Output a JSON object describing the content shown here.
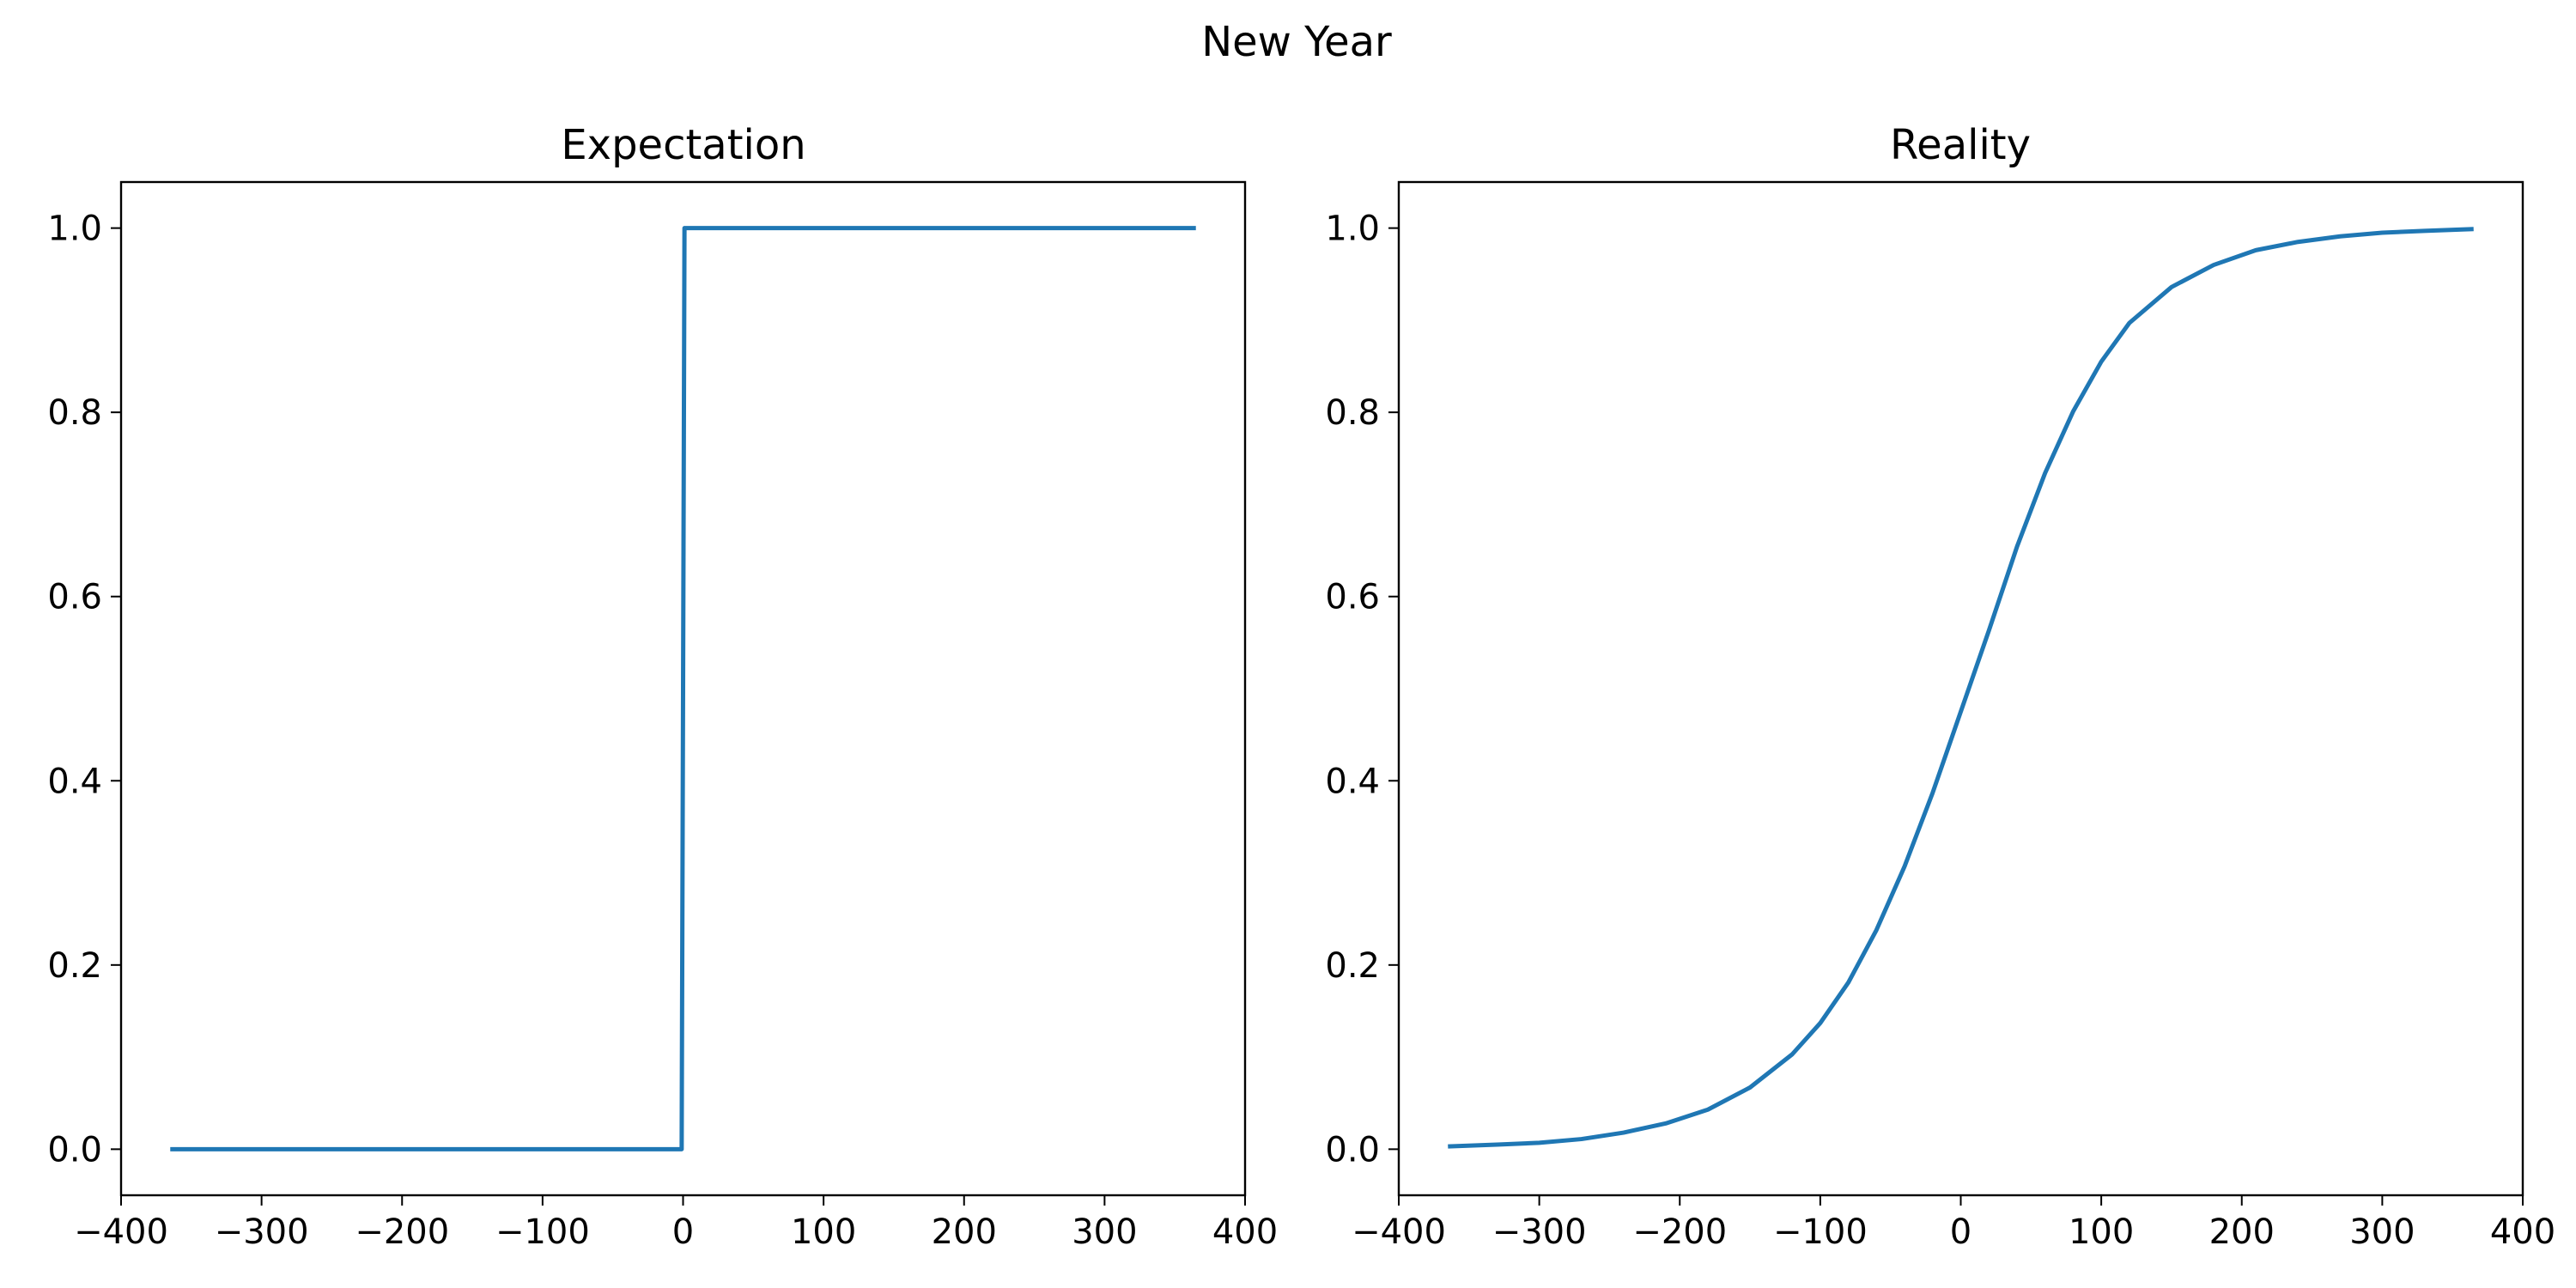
{
  "figure": {
    "title": "New Year"
  },
  "colors": {
    "series": "#1f77b4"
  },
  "chart_data": [
    {
      "type": "line",
      "title": "Expectation",
      "xlabel": "",
      "ylabel": "",
      "xlim": [
        -400,
        400
      ],
      "ylim": [
        -0.05,
        1.05
      ],
      "xticks": [
        -400,
        -300,
        -200,
        -100,
        0,
        100,
        200,
        300,
        400
      ],
      "yticks": [
        0.0,
        0.2,
        0.4,
        0.6,
        0.8,
        1.0
      ],
      "grid": false,
      "series": [
        {
          "x": [
            -365,
            -1,
            1,
            365
          ],
          "y": [
            0,
            0,
            1,
            1
          ]
        }
      ]
    },
    {
      "type": "line",
      "title": "Reality",
      "xlabel": "",
      "ylabel": "",
      "xlim": [
        -400,
        400
      ],
      "ylim": [
        -0.05,
        1.05
      ],
      "xticks": [
        -400,
        -300,
        -200,
        -100,
        0,
        100,
        200,
        300,
        400
      ],
      "yticks": [
        0.0,
        0.2,
        0.4,
        0.6,
        0.8,
        1.0
      ],
      "grid": false,
      "series": [
        {
          "x": [
            -365,
            -330,
            -300,
            -270,
            -240,
            -210,
            -180,
            -150,
            -120,
            -100,
            -80,
            -60,
            -40,
            -20,
            0,
            20,
            40,
            60,
            80,
            100,
            120,
            150,
            180,
            210,
            240,
            270,
            300,
            330,
            365
          ],
          "y": [
            0.003,
            0.005,
            0.007,
            0.011,
            0.018,
            0.028,
            0.043,
            0.067,
            0.103,
            0.137,
            0.181,
            0.238,
            0.307,
            0.387,
            0.475,
            0.563,
            0.654,
            0.734,
            0.801,
            0.855,
            0.897,
            0.936,
            0.96,
            0.976,
            0.985,
            0.991,
            0.995,
            0.997,
            0.999
          ]
        }
      ]
    }
  ]
}
